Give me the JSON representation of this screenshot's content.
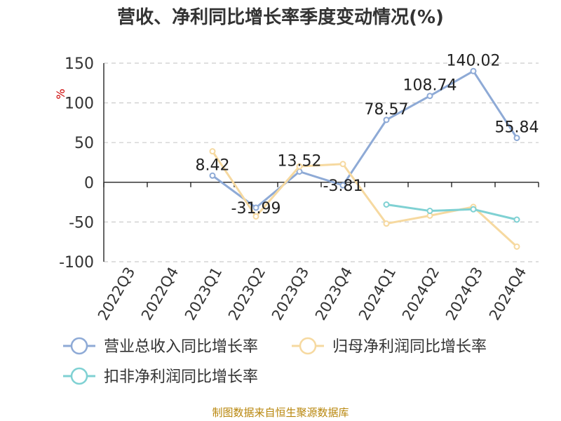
{
  "title": "营收、净利同比增长率季度变动情况(%)",
  "source": "制图数据来自恒生聚源数据库",
  "colors": {
    "revenue": "#8eaad6",
    "net_profit": "#f6d9a0",
    "deducted_profit": "#7fd1d3",
    "axis": "#333333",
    "grid": "#cccccc",
    "unit": "#cc0000"
  },
  "chart_data": {
    "type": "line",
    "ylabel": "%",
    "ylim": [
      -100,
      150
    ],
    "yticks": [
      150,
      100,
      50,
      0,
      -50,
      -100
    ],
    "grid": true,
    "legend_position": "bottom",
    "categories": [
      "2022Q3",
      "2022Q4",
      "2023Q1",
      "2023Q2",
      "2023Q3",
      "2023Q4",
      "2024Q1",
      "2024Q2",
      "2024Q3",
      "2024Q4"
    ],
    "series": [
      {
        "name": "营业总收入同比增长率",
        "color_key": "revenue",
        "labeled": true,
        "values": [
          null,
          null,
          8.42,
          -31.99,
          13.52,
          -3.81,
          78.57,
          108.74,
          140.02,
          55.84
        ],
        "labels": [
          null,
          null,
          "8.42",
          "-31.99",
          "13.52",
          "-3.81",
          "78.57",
          "108.74",
          "140.02",
          "55.84"
        ]
      },
      {
        "name": "归母净利润同比增长率",
        "color_key": "net_profit",
        "labeled": false,
        "values": [
          null,
          null,
          39,
          -43,
          20,
          23,
          -52,
          -42,
          -31,
          -81
        ]
      },
      {
        "name": "扣非净利润同比增长率",
        "color_key": "deducted_profit",
        "labeled": false,
        "values": [
          null,
          null,
          null,
          null,
          null,
          null,
          -28,
          -36,
          -34,
          -47
        ]
      }
    ]
  }
}
